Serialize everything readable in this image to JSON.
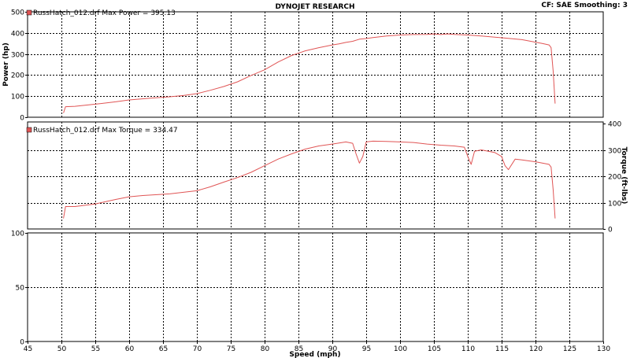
{
  "header": {
    "title": "DYNOJET RESEARCH",
    "settings": "CF: SAE  Smoothing: 3"
  },
  "chart_data": [
    {
      "type": "line",
      "legend": "RussHatch_012.drf Max Power = 395.13",
      "ylabel": "Power (hp)",
      "xlim": [
        45,
        130
      ],
      "ylim": [
        0,
        500
      ],
      "yticks": [
        "0",
        "100",
        "200",
        "300",
        "400",
        "500"
      ],
      "grid": true,
      "line_color": "#e05555",
      "series": [
        {
          "x": [
            50.3,
            50.6,
            52,
            55,
            58,
            60,
            63,
            66,
            68,
            70,
            72,
            74,
            76,
            78,
            80,
            82,
            84,
            86,
            88,
            90,
            91,
            92,
            93,
            94,
            95,
            96,
            98,
            100,
            102,
            104,
            105,
            106,
            107,
            108,
            110,
            112,
            114,
            116,
            118,
            120,
            121,
            122,
            122.3,
            122.6,
            122.9
          ],
          "y": [
            20,
            50,
            52,
            62,
            73,
            82,
            90,
            97,
            103,
            112,
            128,
            146,
            168,
            198,
            225,
            262,
            293,
            315,
            330,
            343,
            348,
            355,
            360,
            370,
            373,
            378,
            385,
            390,
            392,
            393,
            395,
            392,
            395,
            393,
            390,
            385,
            380,
            374,
            368,
            356,
            350,
            343,
            330,
            220,
            65
          ]
        }
      ]
    },
    {
      "type": "line",
      "legend": "RussHatch_012.drf Max Torque = 334.47",
      "ylabel": "Torque (ft-lbs)",
      "xlim": [
        45,
        130
      ],
      "ylim": [
        0,
        400
      ],
      "yticks": [
        "0",
        "100",
        "200",
        "300",
        "400"
      ],
      "grid": true,
      "line_color": "#e05555",
      "series": [
        {
          "x": [
            50.3,
            50.6,
            52,
            55,
            58,
            60,
            62,
            66,
            70,
            72,
            74,
            76,
            78,
            80,
            82,
            84,
            86,
            88,
            90,
            92,
            93,
            93.5,
            94,
            94.5,
            95,
            96,
            98,
            100,
            102,
            104,
            106,
            108,
            109.5,
            110,
            110.5,
            111,
            112,
            114,
            115,
            115.5,
            116,
            117,
            118,
            120,
            122,
            122.3,
            122.6,
            122.9
          ],
          "y": [
            40,
            85,
            85,
            95,
            112,
            122,
            127,
            133,
            145,
            160,
            178,
            195,
            215,
            240,
            265,
            285,
            303,
            315,
            322,
            330,
            325,
            285,
            250,
            275,
            330,
            333,
            332,
            330,
            328,
            322,
            318,
            315,
            310,
            275,
            245,
            295,
            300,
            290,
            275,
            240,
            225,
            265,
            262,
            255,
            245,
            235,
            150,
            40
          ]
        }
      ]
    },
    {
      "type": "line",
      "xlabel": "Speed (mph)",
      "xlim": [
        45,
        130
      ],
      "ylim": [
        0,
        100
      ],
      "xticks": [
        "45",
        "50",
        "55",
        "60",
        "65",
        "70",
        "75",
        "80",
        "85",
        "90",
        "95",
        "100",
        "105",
        "110",
        "115",
        "120",
        "125",
        "130"
      ],
      "yticks": [
        "0",
        "50",
        "100"
      ],
      "grid": true,
      "series": []
    }
  ]
}
